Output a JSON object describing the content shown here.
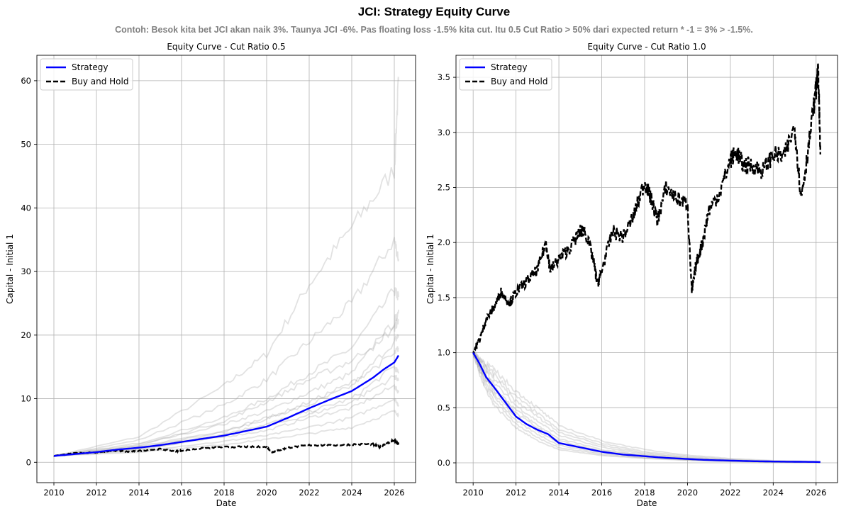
{
  "suptitle": "JCI: Strategy Equity Curve",
  "subtitle": "Contoh: Besok kita bet JCI akan naik 3%. Taunya JCI -6%. Pas floating loss -1.5% kita cut. Itu 0.5 Cut Ratio > 50% dari expected return * -1 = 3% > -1.5%.",
  "colors": {
    "strategy": "#0000ff",
    "buy_hold": "#000000",
    "simulations": "#9e9e9e"
  },
  "chart_data": [
    {
      "type": "line",
      "title": "Equity Curve - Cut Ratio 0.5",
      "xlabel": "Date",
      "ylabel": "Capital - Initial 1",
      "xlim": [
        2009.2,
        2027.0
      ],
      "ylim": [
        -3.2,
        64
      ],
      "xticks": [
        2010,
        2012,
        2014,
        2016,
        2018,
        2020,
        2022,
        2024,
        2026
      ],
      "yticks": [
        0,
        10,
        20,
        30,
        40,
        50,
        60
      ],
      "grid": true,
      "legend": {
        "position": "top-left",
        "entries": [
          "Strategy",
          "Buy and Hold"
        ]
      },
      "series": [
        {
          "name": "Strategy",
          "style": "solid-blue",
          "x": [
            2010,
            2011,
            2012,
            2013,
            2014,
            2015,
            2016,
            2017,
            2018,
            2019,
            2020,
            2021,
            2022,
            2023,
            2024,
            2025,
            2025.5,
            2026,
            2026.2
          ],
          "y": [
            1.0,
            1.3,
            1.6,
            2.0,
            2.3,
            2.7,
            3.2,
            3.7,
            4.2,
            4.9,
            5.6,
            7.0,
            8.5,
            9.9,
            11.2,
            13.3,
            14.6,
            15.7,
            16.8
          ]
        },
        {
          "name": "Buy and Hold",
          "style": "dashed-black",
          "x": [
            2010,
            2010.5,
            2011,
            2012,
            2013,
            2013.5,
            2014,
            2015,
            2015.7,
            2016,
            2017,
            2018,
            2019,
            2020,
            2020.25,
            2020.6,
            2021,
            2022,
            2023,
            2024,
            2025,
            2025.3,
            2025.6,
            2026,
            2026.2
          ],
          "y": [
            1.0,
            1.2,
            1.45,
            1.55,
            1.85,
            1.65,
            1.8,
            2.1,
            1.7,
            1.85,
            2.2,
            2.4,
            2.45,
            2.4,
            1.6,
            1.9,
            2.3,
            2.7,
            2.65,
            2.8,
            2.85,
            2.4,
            2.9,
            3.5,
            2.8
          ]
        }
      ],
      "simulations": [
        {
          "x": [
            2010,
            2014,
            2018,
            2020,
            2022,
            2024,
            2026,
            2026.2
          ],
          "y": [
            1.0,
            4.0,
            12.0,
            17.0,
            28.0,
            37.0,
            46.0,
            60.0
          ]
        },
        {
          "x": [
            2010,
            2014,
            2018,
            2020,
            2022,
            2024,
            2026,
            2026.2
          ],
          "y": [
            1.0,
            3.5,
            9.0,
            13.0,
            19.0,
            25.0,
            35.0,
            32.0
          ]
        },
        {
          "x": [
            2010,
            2014,
            2018,
            2020,
            2022,
            2024,
            2026,
            2026.2
          ],
          "y": [
            1.0,
            3.0,
            7.0,
            10.0,
            14.0,
            18.0,
            27.0,
            26.0
          ]
        },
        {
          "x": [
            2010,
            2014,
            2018,
            2020,
            2022,
            2024,
            2026,
            2026.2
          ],
          "y": [
            1.0,
            2.8,
            6.0,
            8.0,
            11.0,
            14.0,
            22.0,
            24.0
          ]
        },
        {
          "x": [
            2010,
            2014,
            2018,
            2020,
            2022,
            2024,
            2026,
            2026.2
          ],
          "y": [
            1.0,
            2.5,
            5.0,
            7.0,
            9.0,
            12.0,
            19.0,
            20.0
          ]
        },
        {
          "x": [
            2010,
            2014,
            2018,
            2020,
            2022,
            2024,
            2026,
            2026.2
          ],
          "y": [
            1.0,
            2.2,
            4.5,
            6.0,
            8.0,
            10.0,
            15.0,
            14.0
          ]
        },
        {
          "x": [
            2010,
            2014,
            2018,
            2020,
            2022,
            2024,
            2026,
            2026.2
          ],
          "y": [
            1.0,
            2.0,
            4.0,
            5.0,
            7.0,
            8.5,
            12.0,
            11.0
          ]
        },
        {
          "x": [
            2010,
            2014,
            2018,
            2020,
            2022,
            2024,
            2026,
            2026.2
          ],
          "y": [
            1.0,
            1.8,
            3.3,
            4.2,
            5.5,
            7.0,
            10.0,
            9.0
          ]
        },
        {
          "x": [
            2010,
            2014,
            2018,
            2020,
            2022,
            2024,
            2026,
            2026.2
          ],
          "y": [
            1.0,
            1.6,
            2.8,
            3.6,
            4.5,
            5.5,
            8.0,
            7.5
          ]
        },
        {
          "x": [
            2010,
            2014,
            2018,
            2020,
            2022,
            2024,
            2026,
            2026.2
          ],
          "y": [
            1.0,
            2.6,
            6.5,
            9.5,
            13.0,
            16.0,
            21.0,
            22.5
          ]
        },
        {
          "x": [
            2010,
            2014,
            2018,
            2020,
            2022,
            2024,
            2026,
            2026.2
          ],
          "y": [
            1.0,
            2.3,
            4.8,
            6.8,
            9.5,
            12.5,
            17.0,
            18.0
          ]
        },
        {
          "x": [
            2010,
            2014,
            2018,
            2020,
            2022,
            2024,
            2026,
            2026.2
          ],
          "y": [
            1.0,
            2.1,
            4.2,
            5.6,
            7.5,
            9.5,
            13.5,
            13.0
          ]
        }
      ]
    },
    {
      "type": "line",
      "title": "Equity Curve - Cut Ratio 1.0",
      "xlabel": "Date",
      "ylabel": "Capital - Initial 1",
      "xlim": [
        2009.2,
        2027.0
      ],
      "ylim": [
        -0.18,
        3.7
      ],
      "xticks": [
        2010,
        2012,
        2014,
        2016,
        2018,
        2020,
        2022,
        2024,
        2026
      ],
      "yticks": [
        0.0,
        0.5,
        1.0,
        1.5,
        2.0,
        2.5,
        3.0,
        3.5
      ],
      "grid": true,
      "legend": {
        "position": "top-left",
        "entries": [
          "Strategy",
          "Buy and Hold"
        ]
      },
      "series": [
        {
          "name": "Strategy",
          "style": "solid-blue",
          "x": [
            2010,
            2010.3,
            2010.6,
            2011,
            2011.5,
            2012,
            2012.5,
            2013,
            2013.5,
            2014,
            2015,
            2016,
            2017,
            2018,
            2019,
            2020,
            2021,
            2022,
            2023,
            2024,
            2025,
            2026,
            2026.2
          ],
          "y": [
            1.0,
            0.9,
            0.78,
            0.68,
            0.55,
            0.42,
            0.35,
            0.3,
            0.26,
            0.18,
            0.14,
            0.1,
            0.075,
            0.06,
            0.045,
            0.035,
            0.025,
            0.02,
            0.015,
            0.012,
            0.01,
            0.008,
            0.007
          ]
        },
        {
          "name": "Buy and Hold",
          "style": "dashed-black",
          "x": [
            2010,
            2010.3,
            2010.6,
            2011,
            2011.3,
            2011.7,
            2012,
            2012.5,
            2013,
            2013.4,
            2013.6,
            2014,
            2014.5,
            2015,
            2015.2,
            2015.6,
            2015.8,
            2016,
            2016.5,
            2017,
            2017.5,
            2018,
            2018.3,
            2018.6,
            2019,
            2019.5,
            2020,
            2020.2,
            2020.4,
            2020.7,
            2021,
            2021.5,
            2022,
            2022.3,
            2022.6,
            2023,
            2023.5,
            2024,
            2024.5,
            2025,
            2025.3,
            2025.6,
            2026,
            2026.1,
            2026.2
          ],
          "y": [
            1.0,
            1.12,
            1.3,
            1.42,
            1.55,
            1.45,
            1.55,
            1.65,
            1.75,
            2.0,
            1.75,
            1.85,
            1.95,
            2.1,
            2.12,
            1.85,
            1.62,
            1.75,
            2.1,
            2.05,
            2.25,
            2.55,
            2.4,
            2.2,
            2.5,
            2.4,
            2.35,
            1.55,
            1.8,
            2.0,
            2.3,
            2.45,
            2.75,
            2.82,
            2.7,
            2.7,
            2.65,
            2.8,
            2.78,
            3.05,
            2.4,
            2.8,
            3.4,
            3.55,
            2.8
          ]
        }
      ],
      "simulations": [
        {
          "x": [
            2010,
            2010.5,
            2011,
            2012,
            2013,
            2014,
            2016,
            2018,
            2020,
            2022,
            2024,
            2026.2
          ],
          "y": [
            1.0,
            0.9,
            0.8,
            0.6,
            0.45,
            0.3,
            0.18,
            0.1,
            0.06,
            0.03,
            0.015,
            0.01
          ]
        },
        {
          "x": [
            2010,
            2010.5,
            2011,
            2012,
            2013,
            2014,
            2016,
            2018,
            2020,
            2022,
            2024,
            2026.2
          ],
          "y": [
            1.0,
            0.85,
            0.72,
            0.52,
            0.38,
            0.25,
            0.14,
            0.08,
            0.045,
            0.025,
            0.012,
            0.008
          ]
        },
        {
          "x": [
            2010,
            2010.5,
            2011,
            2012,
            2013,
            2014,
            2016,
            2018,
            2020,
            2022,
            2024,
            2026.2
          ],
          "y": [
            1.0,
            0.8,
            0.65,
            0.45,
            0.32,
            0.2,
            0.11,
            0.065,
            0.035,
            0.02,
            0.01,
            0.006
          ]
        },
        {
          "x": [
            2010,
            2010.5,
            2011,
            2012,
            2013,
            2014,
            2016,
            2018,
            2020,
            2022,
            2024,
            2026.2
          ],
          "y": [
            1.0,
            0.75,
            0.6,
            0.38,
            0.26,
            0.16,
            0.085,
            0.05,
            0.028,
            0.015,
            0.008,
            0.005
          ]
        },
        {
          "x": [
            2010,
            2010.5,
            2011,
            2012,
            2013,
            2014,
            2016,
            2018,
            2020,
            2022,
            2024,
            2026.2
          ],
          "y": [
            1.0,
            0.7,
            0.52,
            0.32,
            0.2,
            0.12,
            0.065,
            0.04,
            0.022,
            0.012,
            0.006,
            0.004
          ]
        },
        {
          "x": [
            2010,
            2010.5,
            2011,
            2012,
            2013,
            2014,
            2016,
            2018,
            2020,
            2022,
            2024,
            2026.2
          ],
          "y": [
            1.0,
            0.88,
            0.76,
            0.56,
            0.42,
            0.28,
            0.16,
            0.09,
            0.05,
            0.028,
            0.014,
            0.009
          ]
        },
        {
          "x": [
            2010,
            2010.5,
            2011,
            2012,
            2013,
            2014,
            2016,
            2018,
            2020,
            2022,
            2024,
            2026.2
          ],
          "y": [
            1.0,
            0.82,
            0.68,
            0.48,
            0.34,
            0.22,
            0.12,
            0.07,
            0.04,
            0.022,
            0.011,
            0.007
          ]
        },
        {
          "x": [
            2010,
            2010.5,
            2011,
            2012,
            2013,
            2014,
            2016,
            2018,
            2020,
            2022,
            2024,
            2026.2
          ],
          "y": [
            1.0,
            0.78,
            0.62,
            0.42,
            0.29,
            0.18,
            0.1,
            0.058,
            0.032,
            0.018,
            0.009,
            0.006
          ]
        },
        {
          "x": [
            2010,
            2010.5,
            2011,
            2012,
            2013,
            2014,
            2016,
            2018,
            2020,
            2022,
            2024,
            2026.2
          ],
          "y": [
            1.0,
            0.92,
            0.84,
            0.65,
            0.5,
            0.34,
            0.2,
            0.12,
            0.07,
            0.04,
            0.02,
            0.012
          ]
        },
        {
          "x": [
            2010,
            2010.5,
            2011,
            2012,
            2013,
            2014,
            2016,
            2018,
            2020,
            2022,
            2024,
            2026.2
          ],
          "y": [
            1.0,
            0.72,
            0.56,
            0.35,
            0.23,
            0.14,
            0.075,
            0.045,
            0.025,
            0.014,
            0.007,
            0.004
          ]
        }
      ]
    }
  ]
}
